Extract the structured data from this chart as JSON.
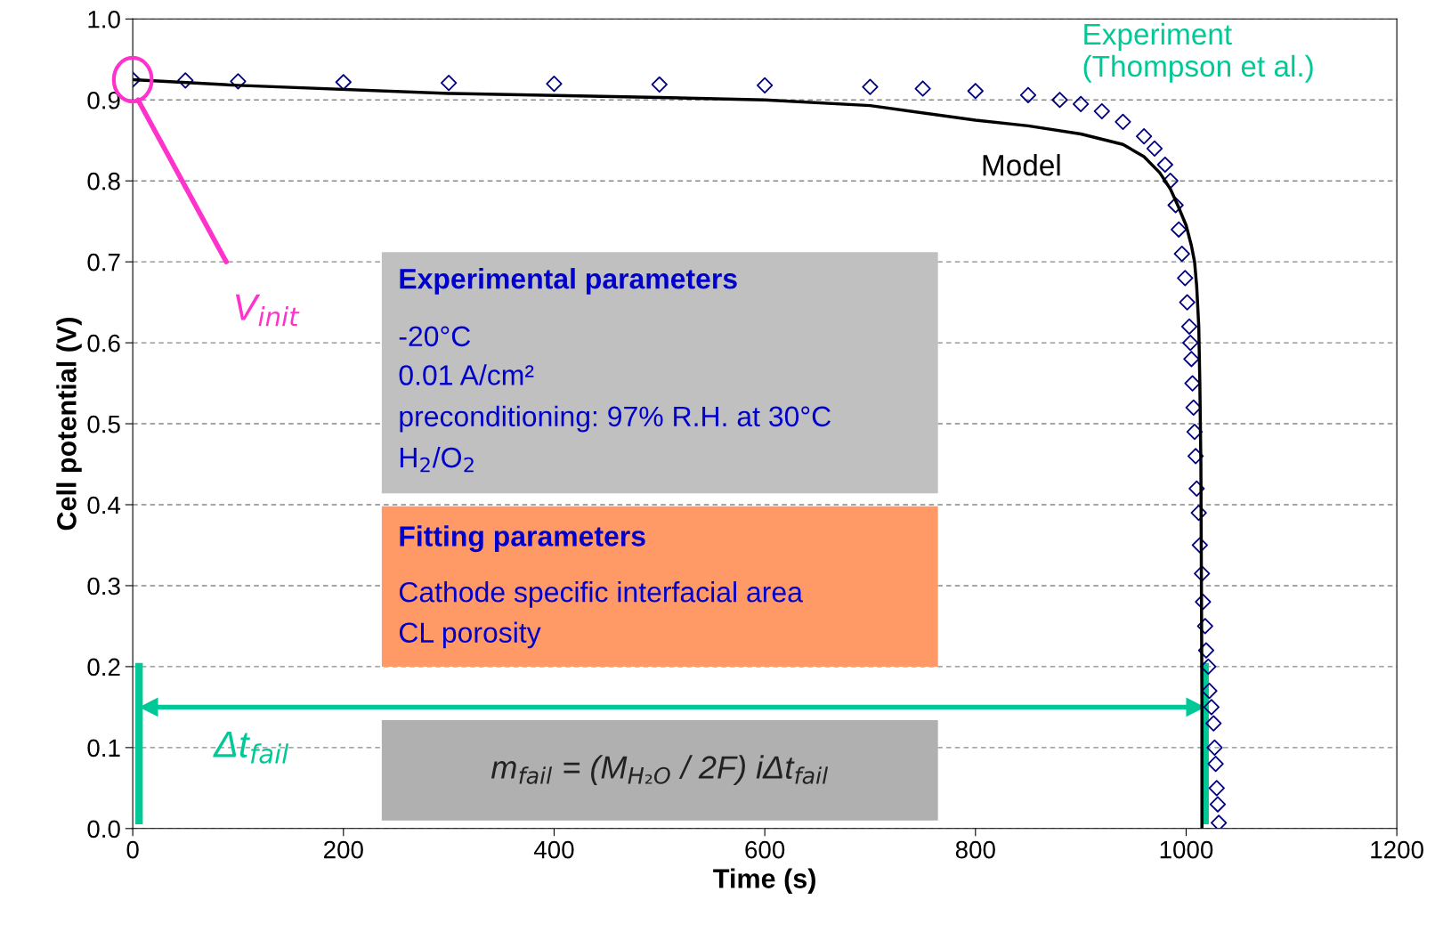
{
  "chart_data": {
    "type": "scatter",
    "xlabel": "Time (s)",
    "ylabel": "Cell potential (V)",
    "xlim": [
      0,
      1200
    ],
    "xticks": [
      0,
      200,
      400,
      600,
      800,
      1000,
      1200
    ],
    "ylim": [
      0,
      1.0
    ],
    "yticks": [
      {
        "value": 0,
        "label": "0.0"
      },
      {
        "value": 0.1,
        "label": "0.1"
      },
      {
        "value": 0.2,
        "label": "0.2"
      },
      {
        "value": 0.3,
        "label": "0.3"
      },
      {
        "value": 0.4,
        "label": "0.4"
      },
      {
        "value": 0.5,
        "label": "0.5"
      },
      {
        "value": 0.6,
        "label": "0.6"
      },
      {
        "value": 0.7,
        "label": "0.7"
      },
      {
        "value": 0.8,
        "label": "0.8"
      },
      {
        "value": 0.9,
        "label": "0.9"
      },
      {
        "value": 1.0,
        "label": "1.0"
      }
    ],
    "grid": "y",
    "legend": false,
    "series": [
      {
        "name": "Experiment\n(Thompson et al.)",
        "marker": "diamond",
        "color": "#000080",
        "x": [
          0,
          50,
          100,
          200,
          300,
          400,
          500,
          600,
          700,
          750,
          800,
          850,
          880,
          900,
          920,
          940,
          960,
          970,
          980,
          985,
          990,
          993,
          996,
          999,
          1001,
          1003,
          1004,
          1005,
          1006,
          1007,
          1008,
          1009,
          1010,
          1012,
          1013,
          1015,
          1016,
          1018,
          1019,
          1021,
          1022,
          1024,
          1026,
          1027,
          1028,
          1029,
          1030,
          1031
        ],
        "values": [
          0.925,
          0.924,
          0.923,
          0.922,
          0.921,
          0.92,
          0.919,
          0.918,
          0.916,
          0.914,
          0.911,
          0.906,
          0.9,
          0.895,
          0.886,
          0.873,
          0.855,
          0.84,
          0.82,
          0.8,
          0.77,
          0.74,
          0.71,
          0.68,
          0.65,
          0.62,
          0.6,
          0.58,
          0.55,
          0.52,
          0.49,
          0.46,
          0.42,
          0.39,
          0.35,
          0.315,
          0.28,
          0.25,
          0.22,
          0.2,
          0.17,
          0.15,
          0.13,
          0.1,
          0.08,
          0.05,
          0.03,
          0.007
        ]
      },
      {
        "name": "Model",
        "type": "line",
        "line_style": "solid",
        "color": "#000000",
        "x": [
          0,
          100,
          300,
          500,
          600,
          700,
          800,
          850,
          900,
          940,
          960,
          975,
          985,
          992,
          1000,
          1005,
          1008,
          1010,
          1012,
          1013,
          1014,
          1014.5,
          1015,
          1015
        ],
        "values": [
          0.925,
          0.918,
          0.908,
          0.903,
          0.9,
          0.893,
          0.875,
          0.868,
          0.858,
          0.845,
          0.83,
          0.81,
          0.79,
          0.77,
          0.745,
          0.72,
          0.7,
          0.67,
          0.62,
          0.55,
          0.45,
          0.3,
          0.15,
          0.0
        ]
      }
    ],
    "ref_lines": [
      {
        "axis": "x",
        "value": 6,
        "color": "#00c896"
      },
      {
        "axis": "x",
        "value": 1018,
        "color": "#00c896"
      }
    ],
    "annotations": [
      "Experimental parameters",
      "-20°C",
      "0.01 A/cm²",
      "preconditioning: 97% R.H. at 30°C",
      "H$_{2}$/O$_{2}$",
      "Fitting parameters",
      "Cathode specific interfacial area",
      "CL porosity",
      "m$_{fail}$ = (M$_{H₂O}$ / 2F) iΔt$_{fail}$",
      "V$_{init}$",
      "Δt$_{fail}$"
    ]
  }
}
